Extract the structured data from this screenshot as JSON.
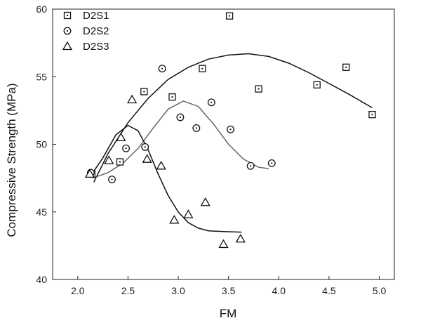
{
  "chart_data": {
    "type": "scatter",
    "title": "",
    "xlabel": "FM",
    "ylabel": "Compressive Strength (MPa)",
    "xlim": [
      1.75,
      5.15
    ],
    "ylim": [
      40,
      60
    ],
    "xticks": [
      "2.0",
      "2.5",
      "3.0",
      "3.5",
      "4.0",
      "4.5",
      "5.0"
    ],
    "yticks": [
      "40",
      "45",
      "50",
      "55",
      "60"
    ],
    "grid": false,
    "legend_position": "top-left",
    "series": [
      {
        "name": "D2S1",
        "marker": "square",
        "color": "#111111",
        "points": [
          [
            2.14,
            47.8
          ],
          [
            2.42,
            48.7
          ],
          [
            2.66,
            53.9
          ],
          [
            2.94,
            53.5
          ],
          [
            3.24,
            55.6
          ],
          [
            3.51,
            59.5
          ],
          [
            3.8,
            54.1
          ],
          [
            4.38,
            54.4
          ],
          [
            4.67,
            55.7
          ],
          [
            4.93,
            52.2
          ]
        ],
        "fit": [
          [
            2.16,
            47.2
          ],
          [
            2.3,
            49.3
          ],
          [
            2.5,
            51.6
          ],
          [
            2.7,
            53.4
          ],
          [
            2.9,
            54.8
          ],
          [
            3.1,
            55.7
          ],
          [
            3.3,
            56.3
          ],
          [
            3.5,
            56.6
          ],
          [
            3.7,
            56.7
          ],
          [
            3.9,
            56.5
          ],
          [
            4.1,
            56.0
          ],
          [
            4.3,
            55.3
          ],
          [
            4.5,
            54.5
          ],
          [
            4.7,
            53.7
          ],
          [
            4.93,
            52.7
          ]
        ]
      },
      {
        "name": "D2S2",
        "marker": "circle",
        "color": "#666666",
        "points": [
          [
            2.13,
            47.9
          ],
          [
            2.34,
            47.4
          ],
          [
            2.48,
            49.7
          ],
          [
            2.67,
            49.8
          ],
          [
            2.84,
            55.6
          ],
          [
            3.02,
            52.0
          ],
          [
            3.18,
            51.2
          ],
          [
            3.33,
            53.1
          ],
          [
            3.52,
            51.1
          ],
          [
            3.72,
            48.4
          ],
          [
            3.93,
            48.6
          ]
        ],
        "fit": [
          [
            2.15,
            47.5
          ],
          [
            2.3,
            47.9
          ],
          [
            2.45,
            48.6
          ],
          [
            2.6,
            49.7
          ],
          [
            2.75,
            51.2
          ],
          [
            2.9,
            52.6
          ],
          [
            3.05,
            53.2
          ],
          [
            3.2,
            52.8
          ],
          [
            3.35,
            51.5
          ],
          [
            3.5,
            50.0
          ],
          [
            3.65,
            48.9
          ],
          [
            3.8,
            48.3
          ],
          [
            3.9,
            48.2
          ]
        ]
      },
      {
        "name": "D2S3",
        "marker": "triangle",
        "color": "#111111",
        "points": [
          [
            2.12,
            47.8
          ],
          [
            2.31,
            48.8
          ],
          [
            2.43,
            50.5
          ],
          [
            2.54,
            53.3
          ],
          [
            2.69,
            48.9
          ],
          [
            2.83,
            48.4
          ],
          [
            2.96,
            44.4
          ],
          [
            3.1,
            44.8
          ],
          [
            3.27,
            45.7
          ],
          [
            3.45,
            42.6
          ],
          [
            3.62,
            43.0
          ]
        ],
        "fit": [
          [
            2.14,
            47.8
          ],
          [
            2.25,
            49.0
          ],
          [
            2.38,
            50.7
          ],
          [
            2.5,
            51.4
          ],
          [
            2.6,
            51.0
          ],
          [
            2.7,
            49.6
          ],
          [
            2.8,
            47.8
          ],
          [
            2.9,
            46.2
          ],
          [
            3.0,
            45.0
          ],
          [
            3.1,
            44.2
          ],
          [
            3.2,
            43.8
          ],
          [
            3.3,
            43.6
          ],
          [
            3.45,
            43.55
          ],
          [
            3.63,
            43.5
          ]
        ]
      }
    ]
  }
}
